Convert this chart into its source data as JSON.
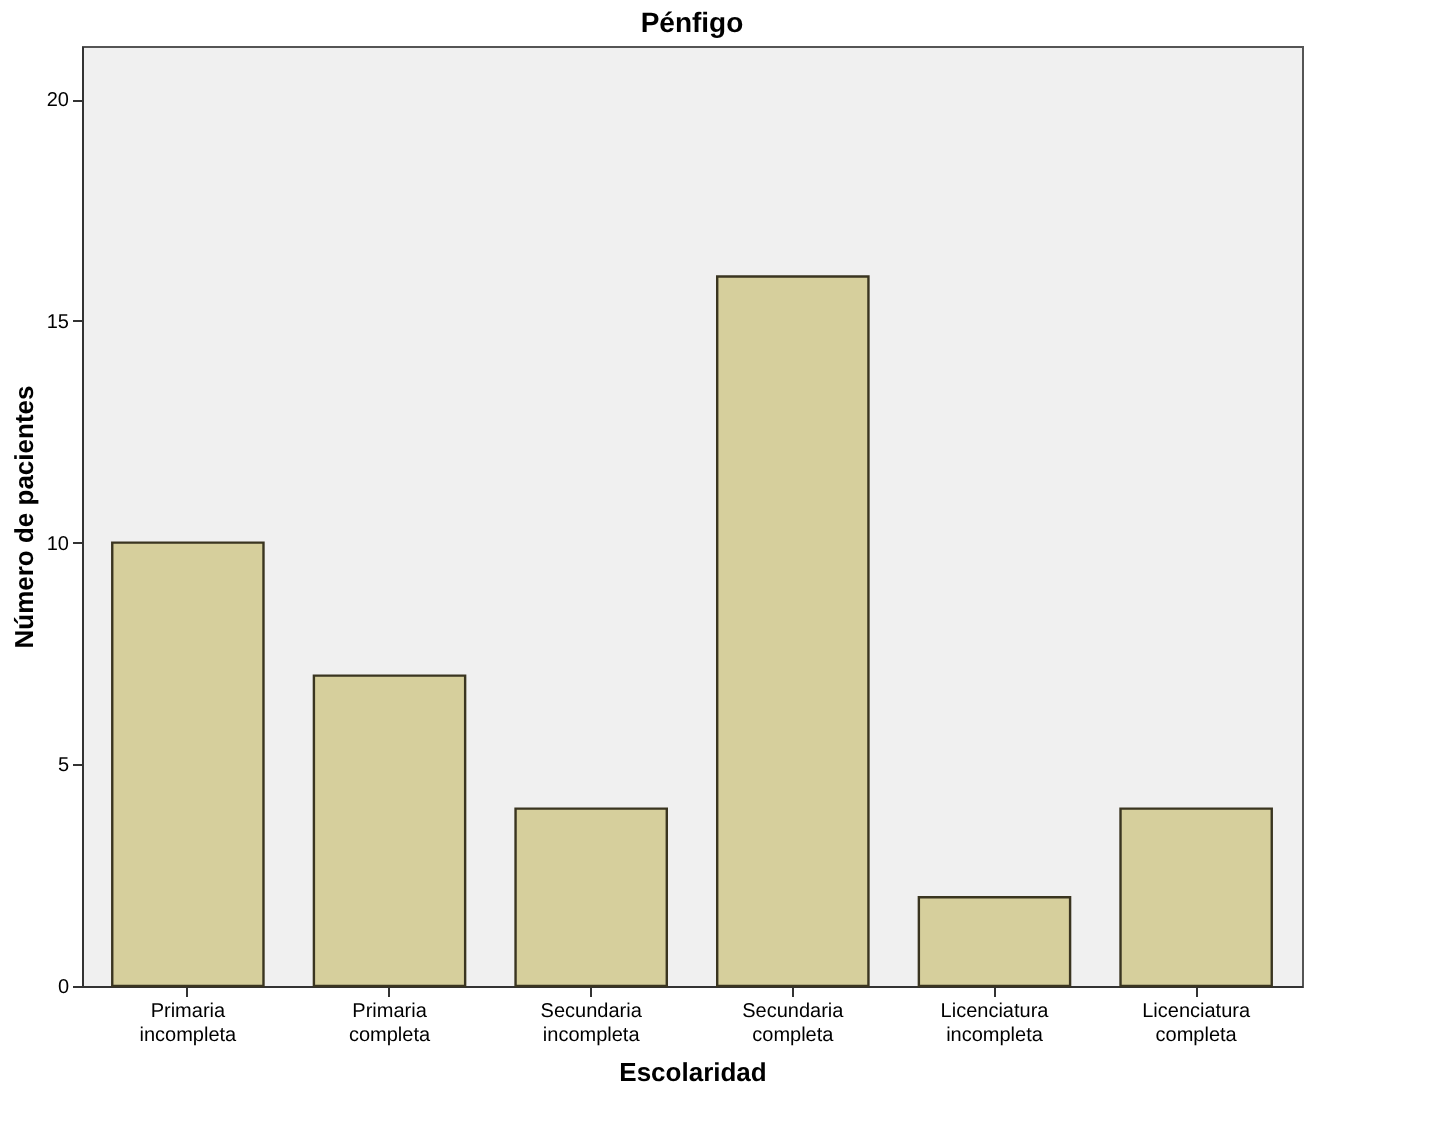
{
  "chart_data": {
    "type": "bar",
    "title": "Pénfigo",
    "xlabel": "Escolaridad",
    "ylabel": "Número de pacientes",
    "categories": [
      "Primaria incompleta",
      "Primaria completa",
      "Secundaria incompleta",
      "Secundaria completa",
      "Licenciatura incompleta",
      "Licenciatura completa"
    ],
    "values": [
      10,
      7,
      4,
      16,
      2,
      4
    ],
    "color": "#d6cf9c",
    "ylim": [
      0,
      21.2
    ],
    "yticks": [
      0,
      5,
      10,
      15,
      20
    ],
    "grid": false
  }
}
